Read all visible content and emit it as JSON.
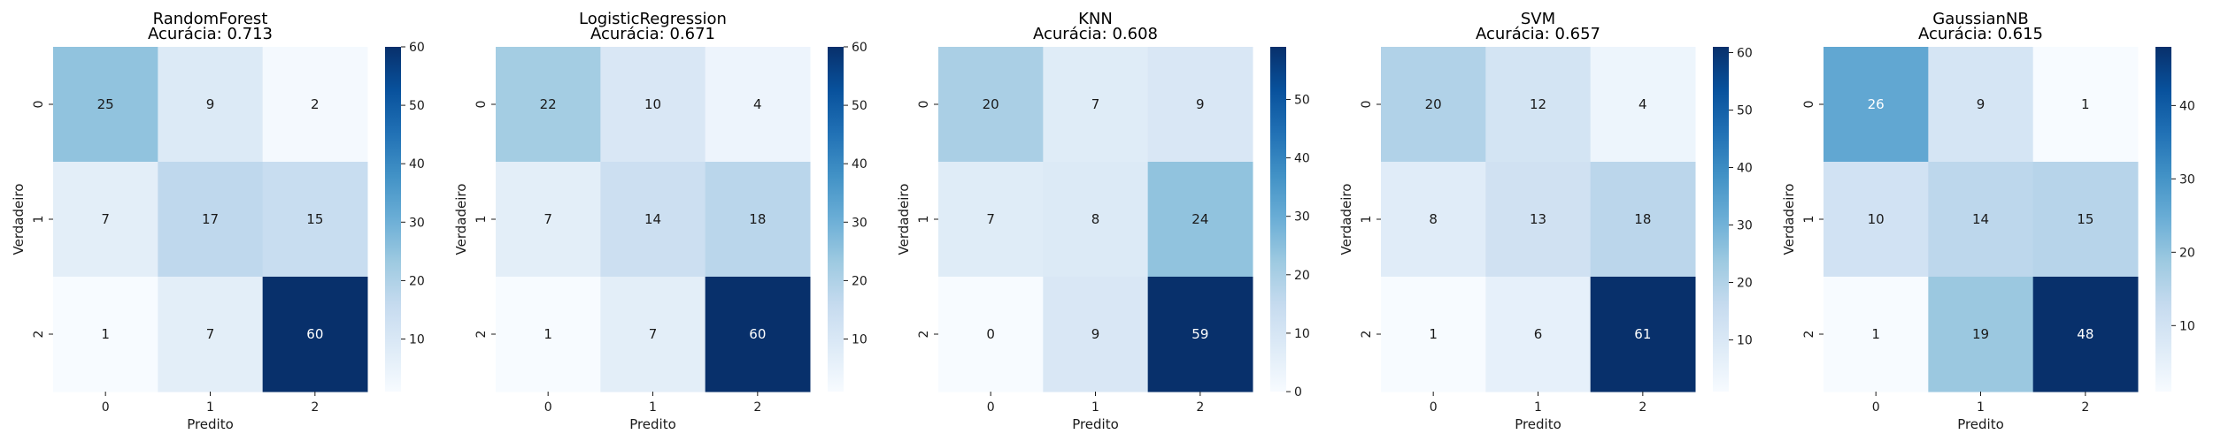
{
  "chart_data": [
    {
      "type": "heatmap",
      "title": "RandomForest",
      "subtitle": "Acurácia: 0.713",
      "xlabel": "Predito",
      "ylabel": "Verdadeiro",
      "x_categories": [
        "0",
        "1",
        "2"
      ],
      "y_categories": [
        "0",
        "1",
        "2"
      ],
      "matrix": [
        [
          25,
          9,
          2
        ],
        [
          7,
          17,
          15
        ],
        [
          1,
          7,
          60
        ]
      ],
      "colorbar": {
        "min": 1,
        "max": 60,
        "ticks": [
          10,
          20,
          30,
          40,
          50,
          60
        ]
      },
      "colormap": "Blues"
    },
    {
      "type": "heatmap",
      "title": "LogisticRegression",
      "subtitle": "Acurácia: 0.671",
      "xlabel": "Predito",
      "ylabel": "Verdadeiro",
      "x_categories": [
        "0",
        "1",
        "2"
      ],
      "y_categories": [
        "0",
        "1",
        "2"
      ],
      "matrix": [
        [
          22,
          10,
          4
        ],
        [
          7,
          14,
          18
        ],
        [
          1,
          7,
          60
        ]
      ],
      "colorbar": {
        "min": 1,
        "max": 60,
        "ticks": [
          10,
          20,
          30,
          40,
          50,
          60
        ]
      },
      "colormap": "Blues"
    },
    {
      "type": "heatmap",
      "title": "KNN",
      "subtitle": "Acurácia: 0.608",
      "xlabel": "Predito",
      "ylabel": "Verdadeiro",
      "x_categories": [
        "0",
        "1",
        "2"
      ],
      "y_categories": [
        "0",
        "1",
        "2"
      ],
      "matrix": [
        [
          20,
          7,
          9
        ],
        [
          7,
          8,
          24
        ],
        [
          0,
          9,
          59
        ]
      ],
      "colorbar": {
        "min": 0,
        "max": 59,
        "ticks": [
          0,
          10,
          20,
          30,
          40,
          50
        ]
      },
      "colormap": "Blues"
    },
    {
      "type": "heatmap",
      "title": "SVM",
      "subtitle": "Acurácia: 0.657",
      "xlabel": "Predito",
      "ylabel": "Verdadeiro",
      "x_categories": [
        "0",
        "1",
        "2"
      ],
      "y_categories": [
        "0",
        "1",
        "2"
      ],
      "matrix": [
        [
          20,
          12,
          4
        ],
        [
          8,
          13,
          18
        ],
        [
          1,
          6,
          61
        ]
      ],
      "colorbar": {
        "min": 1,
        "max": 61,
        "ticks": [
          10,
          20,
          30,
          40,
          50,
          60
        ]
      },
      "colormap": "Blues"
    },
    {
      "type": "heatmap",
      "title": "GaussianNB",
      "subtitle": "Acurácia: 0.615",
      "xlabel": "Predito",
      "ylabel": "Verdadeiro",
      "x_categories": [
        "0",
        "1",
        "2"
      ],
      "y_categories": [
        "0",
        "1",
        "2"
      ],
      "matrix": [
        [
          26,
          9,
          1
        ],
        [
          10,
          14,
          15
        ],
        [
          1,
          19,
          48
        ]
      ],
      "colorbar": {
        "min": 1,
        "max": 48,
        "ticks": [
          10,
          20,
          30,
          40
        ]
      },
      "colormap": "Blues"
    }
  ]
}
